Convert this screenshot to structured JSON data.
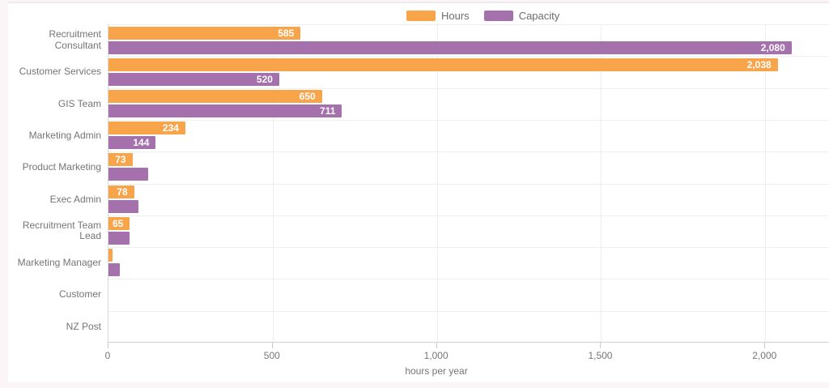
{
  "legend": {
    "items": [
      {
        "label": "Hours",
        "color": "#F8A44B"
      },
      {
        "label": "Capacity",
        "color": "#A571AD"
      }
    ]
  },
  "chart_data": {
    "type": "bar",
    "orientation": "horizontal",
    "title": "",
    "xlabel": "hours per year",
    "categories": [
      "Recruitment Consultant",
      "Customer Services",
      "GIS Team",
      "Marketing Admin",
      "Product Marketing",
      "Exec Admin",
      "Recruitment Team Lead",
      "Marketing Manager",
      "Customer",
      "NZ Post"
    ],
    "series": [
      {
        "name": "Hours",
        "color": "#F8A44B",
        "values": [
          585,
          2038,
          650,
          234,
          73,
          78,
          65,
          12,
          0,
          0
        ],
        "labels": [
          "585",
          "2,038",
          "650",
          "234",
          "73",
          "78",
          "65",
          "",
          "",
          ""
        ]
      },
      {
        "name": "Capacity",
        "color": "#A571AD",
        "values": [
          2080,
          520,
          711,
          144,
          120,
          90,
          65,
          35,
          0,
          0
        ],
        "labels": [
          "2,080",
          "520",
          "711",
          "144",
          "",
          "",
          "",
          "",
          "",
          ""
        ]
      }
    ],
    "x_ticks": [
      "0",
      "500",
      "1,000",
      "1,500",
      "2,000"
    ],
    "x_tick_values": [
      0,
      500,
      1000,
      1500,
      2000
    ],
    "xlim": [
      0,
      2196
    ],
    "grid": true,
    "legend_position": "top-center"
  },
  "colors": {
    "page_bg": "#fcf5f7",
    "card_bg": "#ffffff",
    "gridline": "#ededed",
    "axis_line": "#cfcfcf",
    "axis_text": "#757575",
    "bar_label_text": "#ffffff"
  }
}
